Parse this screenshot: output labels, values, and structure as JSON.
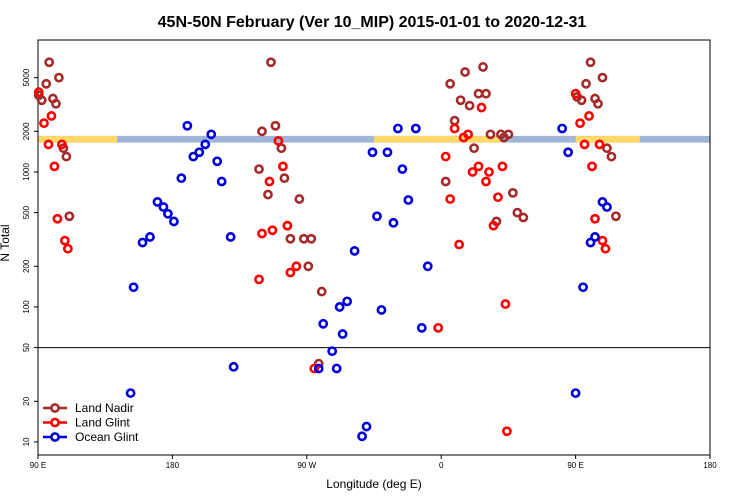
{
  "chart_data": {
    "type": "scatter",
    "title": "45N-50N February (Ver 10_MIP)   2015-01-01 to 2020-12-31",
    "xlabel": "Longitude (deg E)",
    "ylabel": "N Total",
    "y_scale": "log",
    "ylim": [
      8,
      9500
    ],
    "x_axis": {
      "description": "longitude tiled from 90E eastward across 180 to 180E (two wraps of the dateline region)",
      "range_deg_east": [
        90,
        540
      ],
      "ticks": [
        {
          "value": 90,
          "label": "90 E"
        },
        {
          "value": 180,
          "label": "180"
        },
        {
          "value": 270,
          "label": "90 W"
        },
        {
          "value": 360,
          "label": "0"
        },
        {
          "value": 450,
          "label": "90 E"
        },
        {
          "value": 540,
          "label": "180"
        }
      ]
    },
    "y_ticks": [
      10,
      20,
      50,
      100,
      200,
      500,
      1000,
      2000,
      5000
    ],
    "reference_line": 50,
    "band": {
      "range": [
        1650,
        1850
      ],
      "colors": {
        "land": "#ffd966",
        "ocean": "#9fb6d9"
      },
      "land_segments_deg_east": [
        [
          90,
          143
        ],
        [
          315,
          400
        ],
        [
          450,
          493
        ]
      ]
    },
    "legend": {
      "position": "bottom-left"
    },
    "series": [
      {
        "name": "Land Nadir",
        "color": "#a52a2a",
        "points": [
          [
            90.5,
            3700
          ],
          [
            92.5,
            3400
          ],
          [
            95.5,
            4500
          ],
          [
            97.5,
            6500
          ],
          [
            100,
            3500
          ],
          [
            102,
            3200
          ],
          [
            104,
            5000
          ],
          [
            107,
            1500
          ],
          [
            109,
            1300
          ],
          [
            111,
            470
          ],
          [
            238,
            1050
          ],
          [
            240,
            2000
          ],
          [
            244,
            680
          ],
          [
            246,
            6500
          ],
          [
            249,
            2200
          ],
          [
            253,
            1500
          ],
          [
            255,
            900
          ],
          [
            257,
            400
          ],
          [
            259,
            320
          ],
          [
            265,
            630
          ],
          [
            268,
            320
          ],
          [
            271,
            200
          ],
          [
            273,
            320
          ],
          [
            278,
            38
          ],
          [
            280,
            130
          ],
          [
            363,
            850
          ],
          [
            366,
            4500
          ],
          [
            369,
            2400
          ],
          [
            373,
            3400
          ],
          [
            376,
            5500
          ],
          [
            379,
            3100
          ],
          [
            382,
            1500
          ],
          [
            385,
            3800
          ],
          [
            388,
            6000
          ],
          [
            390,
            3800
          ],
          [
            393,
            1900
          ],
          [
            397,
            430
          ],
          [
            400,
            1900
          ],
          [
            402,
            1800
          ],
          [
            405,
            1900
          ],
          [
            408,
            700
          ],
          [
            411,
            500
          ],
          [
            415,
            460
          ],
          [
            451,
            3600
          ],
          [
            454,
            3400
          ],
          [
            457,
            4500
          ],
          [
            460,
            6500
          ],
          [
            463,
            3500
          ],
          [
            465,
            3200
          ],
          [
            468,
            5000
          ],
          [
            471,
            1500
          ],
          [
            474,
            1300
          ],
          [
            477,
            470
          ]
        ]
      },
      {
        "name": "Land Glint",
        "color": "#ff0000",
        "points": [
          [
            90.5,
            3900
          ],
          [
            94,
            2300
          ],
          [
            97,
            1600
          ],
          [
            99,
            2600
          ],
          [
            101,
            1100
          ],
          [
            103,
            450
          ],
          [
            106,
            1600
          ],
          [
            108,
            310
          ],
          [
            110,
            270
          ],
          [
            238,
            160
          ],
          [
            240,
            350
          ],
          [
            245,
            850
          ],
          [
            247,
            370
          ],
          [
            251,
            1700
          ],
          [
            254,
            1100
          ],
          [
            257,
            400
          ],
          [
            259,
            180
          ],
          [
            263,
            200
          ],
          [
            275,
            35
          ],
          [
            358,
            70
          ],
          [
            363,
            1300
          ],
          [
            366,
            630
          ],
          [
            369,
            2100
          ],
          [
            372,
            290
          ],
          [
            375,
            1800
          ],
          [
            378,
            1900
          ],
          [
            381,
            1000
          ],
          [
            385,
            1100
          ],
          [
            387,
            3000
          ],
          [
            390,
            850
          ],
          [
            392,
            1000
          ],
          [
            395,
            400
          ],
          [
            398,
            650
          ],
          [
            401,
            1100
          ],
          [
            403,
            105
          ],
          [
            404,
            12
          ],
          [
            450,
            3800
          ],
          [
            453,
            2300
          ],
          [
            456,
            1600
          ],
          [
            459,
            2600
          ],
          [
            461,
            1100
          ],
          [
            463,
            450
          ],
          [
            466,
            1600
          ],
          [
            468,
            310
          ],
          [
            470,
            270
          ]
        ]
      },
      {
        "name": "Ocean Glint",
        "color": "#0000dd",
        "points": [
          [
            152,
            23
          ],
          [
            154,
            140
          ],
          [
            160,
            300
          ],
          [
            165,
            330
          ],
          [
            170,
            600
          ],
          [
            174,
            550
          ],
          [
            177,
            490
          ],
          [
            181,
            430
          ],
          [
            186,
            900
          ],
          [
            190,
            2200
          ],
          [
            194,
            1300
          ],
          [
            198,
            1400
          ],
          [
            202,
            1600
          ],
          [
            206,
            1900
          ],
          [
            210,
            1200
          ],
          [
            213,
            850
          ],
          [
            219,
            330
          ],
          [
            221,
            36
          ],
          [
            278,
            35
          ],
          [
            281,
            75
          ],
          [
            287,
            47
          ],
          [
            290,
            35
          ],
          [
            292,
            100
          ],
          [
            294,
            63
          ],
          [
            297,
            110
          ],
          [
            302,
            260
          ],
          [
            307,
            11
          ],
          [
            310,
            13
          ],
          [
            314,
            1400
          ],
          [
            317,
            470
          ],
          [
            320,
            95
          ],
          [
            324,
            1400
          ],
          [
            328,
            420
          ],
          [
            331,
            2100
          ],
          [
            334,
            1050
          ],
          [
            338,
            620
          ],
          [
            343,
            2100
          ],
          [
            347,
            70
          ],
          [
            351,
            200
          ],
          [
            441,
            2100
          ],
          [
            445,
            1400
          ],
          [
            450,
            23
          ],
          [
            455,
            140
          ],
          [
            460,
            300
          ],
          [
            463,
            330
          ],
          [
            468,
            600
          ],
          [
            471,
            550
          ]
        ]
      }
    ]
  }
}
